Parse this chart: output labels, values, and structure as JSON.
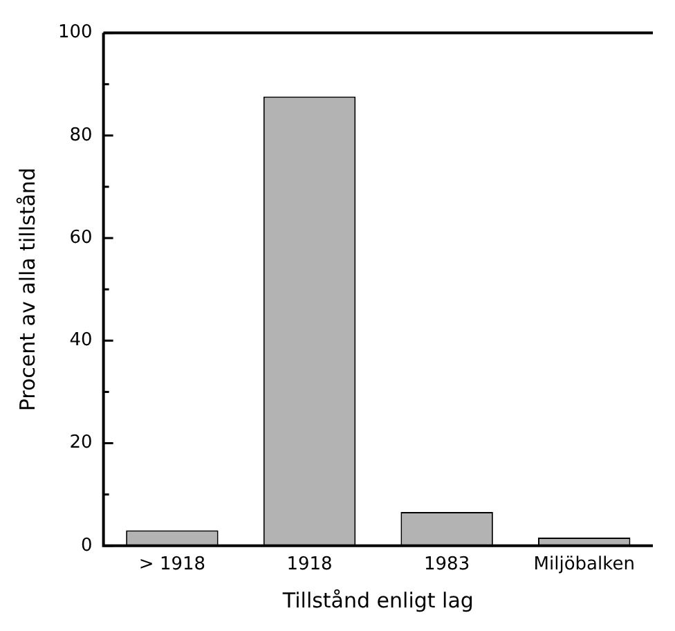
{
  "chart_data": {
    "type": "bar",
    "xlabel": "Tillstånd enligt lag",
    "ylabel": "Procent av alla tillstånd",
    "categories": [
      "> 1918",
      "1918",
      "1983",
      "Miljöbalken"
    ],
    "values": [
      3.0,
      87.6,
      6.6,
      1.6
    ],
    "color": "#b3b3b3",
    "ylim": [
      0,
      100
    ],
    "yticks": [
      0,
      {
        "value": 10,
        "label": null
      },
      20,
      {
        "value": 30,
        "label": null
      },
      40,
      {
        "value": 50,
        "label": null
      },
      60,
      {
        "value": 70,
        "label": null
      },
      80,
      {
        "value": 90,
        "label": null
      },
      100
    ],
    "grid": false,
    "legend": false
  }
}
